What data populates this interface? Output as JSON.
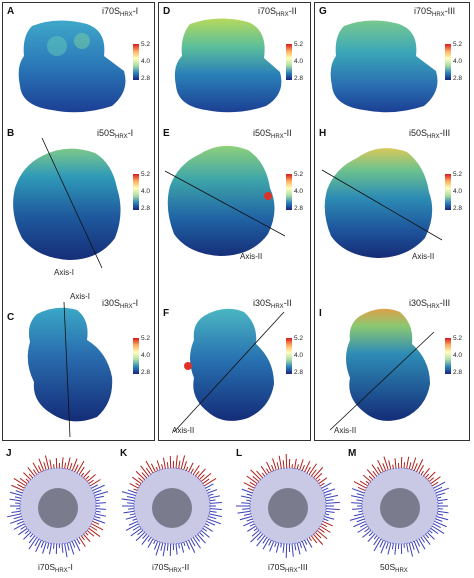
{
  "colorbar": {
    "top": "5.2",
    "mid": "4.0",
    "bottom": "2.8"
  },
  "panels": {
    "A": {
      "letter": "A",
      "title_main": "i70S",
      "title_sub": "HRX",
      "title_suffix": "-I"
    },
    "B": {
      "letter": "B",
      "title_main": "i50S",
      "title_sub": "HRX",
      "title_suffix": "-I",
      "axis": "Axis-I"
    },
    "C": {
      "letter": "C",
      "title_main": "i30S",
      "title_sub": "HRX",
      "title_suffix": "-I",
      "axis": "Axis-I"
    },
    "D": {
      "letter": "D",
      "title_main": "i70S",
      "title_sub": "HRX",
      "title_suffix": "-II"
    },
    "E": {
      "letter": "E",
      "title_main": "i50S",
      "title_sub": "HRX",
      "title_suffix": "-II",
      "axis": "Axis-II"
    },
    "F": {
      "letter": "F",
      "title_main": "i30S",
      "title_sub": "HRX",
      "title_suffix": "-II",
      "axis": "Axis-II"
    },
    "G": {
      "letter": "G",
      "title_main": "i70S",
      "title_sub": "HRX",
      "title_suffix": "-III"
    },
    "H": {
      "letter": "H",
      "title_main": "i50S",
      "title_sub": "HRX",
      "title_suffix": "-III",
      "axis": "Axis-II"
    },
    "I": {
      "letter": "I",
      "title_main": "i30S",
      "title_sub": "HRX",
      "title_suffix": "-III",
      "axis": "Axis-II"
    }
  },
  "spheres": [
    {
      "letter": "J",
      "cap_main": "i70S",
      "cap_sub": "HRX",
      "cap_suffix": "-I"
    },
    {
      "letter": "K",
      "cap_main": "i70S",
      "cap_sub": "HRX",
      "cap_suffix": "-II"
    },
    {
      "letter": "L",
      "cap_main": "i70S",
      "cap_sub": "HRX",
      "cap_suffix": "-III"
    },
    {
      "letter": "M",
      "cap_main": "50S",
      "cap_sub": "HRX",
      "cap_suffix": ""
    }
  ]
}
